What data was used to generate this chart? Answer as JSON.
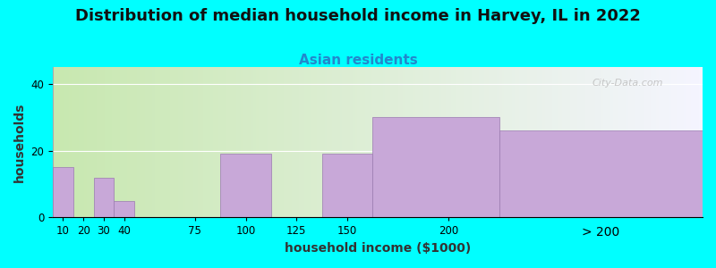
{
  "title": "Distribution of median household income in Harvey, IL in 2022",
  "subtitle": "Asian residents",
  "xlabel": "household income ($1000)",
  "ylabel": "households",
  "background_color": "#00FFFF",
  "plot_bg_gradient_left": "#c8e8b0",
  "plot_bg_gradient_right": "#f5f5ff",
  "bar_color": "#C8A8D8",
  "bar_edge_color": "#9A7AB0",
  "bar_left_edges": [
    5,
    15,
    25,
    35,
    50,
    87.5,
    112.5,
    137.5,
    162.5,
    225
  ],
  "bar_widths": [
    10,
    10,
    10,
    10,
    25,
    25,
    25,
    25,
    62.5,
    100
  ],
  "values": [
    15,
    0,
    12,
    5,
    0,
    19,
    0,
    19,
    30,
    26
  ],
  "xtick_positions": [
    10,
    20,
    30,
    40,
    75,
    100,
    125,
    150,
    200
  ],
  "xtick_labels": [
    "10",
    "20",
    "30",
    "40",
    "75",
    "100",
    "125",
    "150",
    "200"
  ],
  "xlim": [
    5,
    325
  ],
  "ylim": [
    0,
    45
  ],
  "yticks": [
    0,
    20,
    40
  ],
  "title_fontsize": 13,
  "subtitle_fontsize": 11,
  "axis_label_fontsize": 10,
  "tick_fontsize": 8.5,
  "watermark": "City-Data.com",
  "gt200_label": "> 200"
}
